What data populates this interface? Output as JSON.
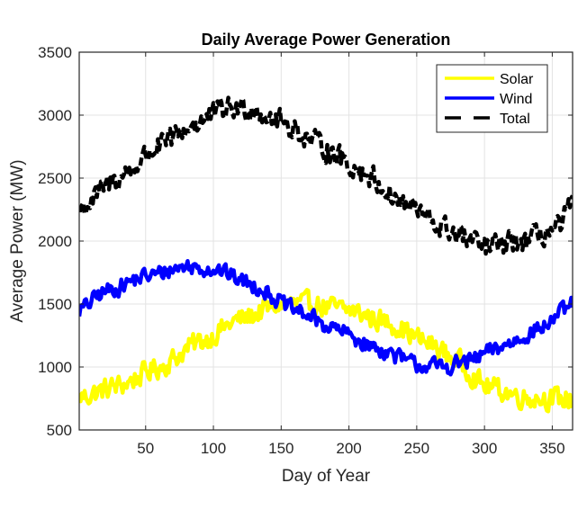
{
  "chart_data": {
    "type": "line",
    "title": "Daily Average Power Generation",
    "xlabel": "Day of Year",
    "ylabel": "Average Power (MW)",
    "xlim": [
      1,
      365
    ],
    "ylim": [
      500,
      3500
    ],
    "xticks": [
      50,
      100,
      150,
      200,
      250,
      300,
      350
    ],
    "xtick_labels": [
      "50",
      "100",
      "150",
      "200",
      "250",
      "300",
      "350"
    ],
    "yticks": [
      500,
      1000,
      1500,
      2000,
      2500,
      3000,
      3500
    ],
    "ytick_labels": [
      "500",
      "1000",
      "1500",
      "2000",
      "2500",
      "3000",
      "3500"
    ],
    "grid": true,
    "legend": {
      "placement": "top-right",
      "entries": [
        "Solar",
        "Wind",
        "Total"
      ]
    },
    "series": [
      {
        "name": "Solar",
        "color": "#ffff00",
        "style": "solid",
        "noise_amplitude_mw": 120,
        "trend_points": [
          [
            1,
            760
          ],
          [
            30,
            850
          ],
          [
            60,
            1000
          ],
          [
            90,
            1200
          ],
          [
            120,
            1380
          ],
          [
            150,
            1500
          ],
          [
            170,
            1500
          ],
          [
            200,
            1450
          ],
          [
            230,
            1350
          ],
          [
            260,
            1180
          ],
          [
            280,
            1050
          ],
          [
            300,
            850
          ],
          [
            330,
            760
          ],
          [
            365,
            740
          ]
        ]
      },
      {
        "name": "Wind",
        "color": "#0000ff",
        "style": "solid",
        "noise_amplitude_mw": 90,
        "trend_points": [
          [
            1,
            1450
          ],
          [
            20,
            1600
          ],
          [
            50,
            1720
          ],
          [
            80,
            1800
          ],
          [
            100,
            1780
          ],
          [
            130,
            1650
          ],
          [
            160,
            1450
          ],
          [
            190,
            1300
          ],
          [
            220,
            1150
          ],
          [
            250,
            1020
          ],
          [
            270,
            1000
          ],
          [
            290,
            1050
          ],
          [
            310,
            1150
          ],
          [
            340,
            1300
          ],
          [
            360,
            1450
          ],
          [
            365,
            1500
          ]
        ]
      },
      {
        "name": "Total",
        "color": "#000000",
        "style": "dashed",
        "noise_amplitude_mw": 130,
        "trend_points": [
          [
            1,
            2250
          ],
          [
            30,
            2500
          ],
          [
            60,
            2750
          ],
          [
            90,
            2950
          ],
          [
            110,
            3050
          ],
          [
            130,
            3050
          ],
          [
            150,
            2950
          ],
          [
            180,
            2750
          ],
          [
            210,
            2550
          ],
          [
            240,
            2300
          ],
          [
            270,
            2100
          ],
          [
            300,
            1950
          ],
          [
            330,
            2000
          ],
          [
            355,
            2100
          ],
          [
            365,
            2300
          ]
        ]
      }
    ]
  }
}
